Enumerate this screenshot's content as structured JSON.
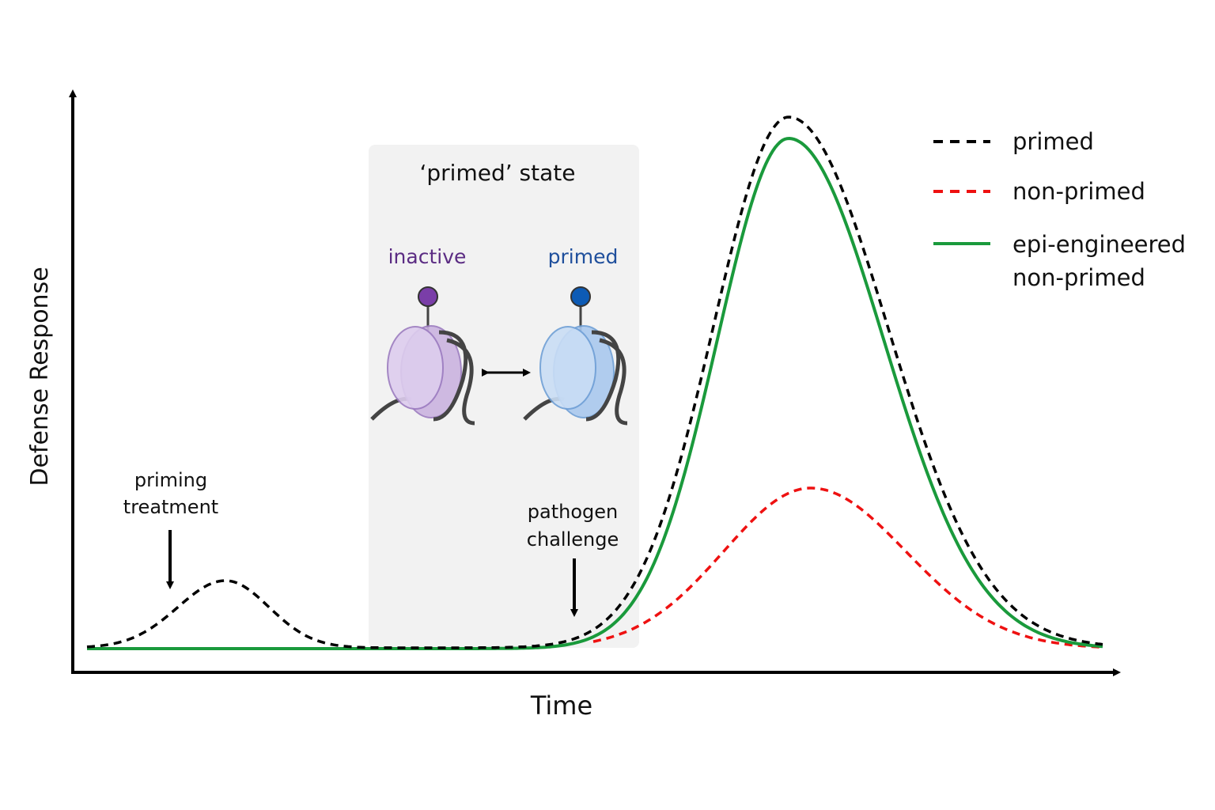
{
  "axes": {
    "y_label": "Defense Response",
    "x_label": "Time"
  },
  "annotations": [
    {
      "lines": [
        "priming",
        "treatment"
      ]
    },
    {
      "lines": [
        "pathogen",
        "challenge"
      ]
    }
  ],
  "inset": {
    "title": "‘primed’ state",
    "states": [
      "inactive",
      "primed"
    ]
  },
  "legend": [
    {
      "lines": [
        "primed"
      ]
    },
    {
      "lines": [
        "non-primed"
      ]
    },
    {
      "lines": [
        "epi-engineered",
        "non-primed"
      ]
    }
  ]
}
